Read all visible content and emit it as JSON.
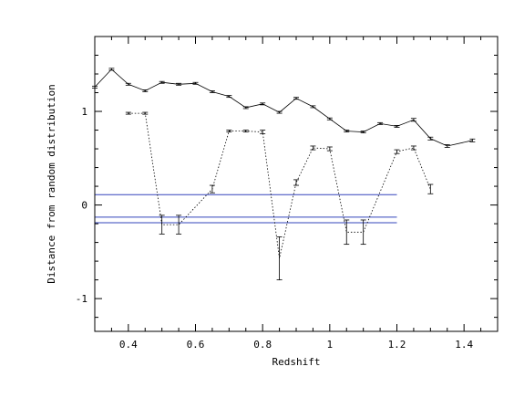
{
  "chart_data": {
    "type": "line",
    "title": "",
    "xlabel": "Redshift",
    "ylabel": "Distance from random distribution",
    "xlim": [
      0.3,
      1.5
    ],
    "ylim": [
      -1.35,
      1.8
    ],
    "x_ticks": [
      0.4,
      0.6,
      0.8,
      1,
      1.2,
      1.4
    ],
    "x_tick_labels": [
      "0.4",
      "0.6",
      "0.8",
      "1",
      "1.2",
      "1.4"
    ],
    "y_ticks": [
      -1,
      0,
      1
    ],
    "y_tick_labels": [
      "-1",
      "0",
      "1"
    ],
    "grid": false,
    "legend": "none",
    "colors": {
      "axes": "#000000",
      "series": "#000000",
      "reference_lines": "#3344bb"
    },
    "series": [
      {
        "style": "solid",
        "points": [
          {
            "x": 0.3,
            "y": 1.26,
            "err": 0.01
          },
          {
            "x": 0.35,
            "y": 1.45,
            "err": 0.01
          },
          {
            "x": 0.4,
            "y": 1.29,
            "err": 0.01
          },
          {
            "x": 0.45,
            "y": 1.22,
            "err": 0.01
          },
          {
            "x": 0.5,
            "y": 1.31,
            "err": 0.01
          },
          {
            "x": 0.55,
            "y": 1.29,
            "err": 0.01
          },
          {
            "x": 0.6,
            "y": 1.3,
            "err": 0.01
          },
          {
            "x": 0.65,
            "y": 1.21,
            "err": 0.01
          },
          {
            "x": 0.7,
            "y": 1.16,
            "err": 0.01
          },
          {
            "x": 0.75,
            "y": 1.04,
            "err": 0.01
          },
          {
            "x": 0.8,
            "y": 1.08,
            "err": 0.01
          },
          {
            "x": 0.85,
            "y": 0.99,
            "err": 0.01
          },
          {
            "x": 0.9,
            "y": 1.14,
            "err": 0.01
          },
          {
            "x": 0.95,
            "y": 1.05,
            "err": 0.01
          },
          {
            "x": 1.0,
            "y": 0.92,
            "err": 0.01
          },
          {
            "x": 1.05,
            "y": 0.79,
            "err": 0.01
          },
          {
            "x": 1.1,
            "y": 0.78,
            "err": 0.01
          },
          {
            "x": 1.15,
            "y": 0.87,
            "err": 0.01
          },
          {
            "x": 1.2,
            "y": 0.84,
            "err": 0.01
          },
          {
            "x": 1.25,
            "y": 0.91,
            "err": 0.015
          },
          {
            "x": 1.3,
            "y": 0.71,
            "err": 0.015
          },
          {
            "x": 1.35,
            "y": 0.63,
            "err": 0.015
          },
          {
            "x": 1.425,
            "y": 0.69,
            "err": 0.015
          }
        ]
      },
      {
        "style": "dotted",
        "points": [
          {
            "x": 0.4,
            "y": 0.98,
            "err": 0.01
          },
          {
            "x": 0.45,
            "y": 0.98,
            "err": 0.01
          },
          {
            "x": 0.5,
            "y": -0.21,
            "err": 0.1
          },
          {
            "x": 0.55,
            "y": -0.21,
            "err": 0.1
          },
          {
            "x": 0.65,
            "y": 0.17,
            "err": 0.04
          },
          {
            "x": 0.7,
            "y": 0.79,
            "err": 0.01
          },
          {
            "x": 0.75,
            "y": 0.79,
            "err": 0.01
          },
          {
            "x": 0.8,
            "y": 0.78,
            "err": 0.02
          },
          {
            "x": 0.85,
            "y": -0.57,
            "err": 0.23
          },
          {
            "x": 0.9,
            "y": 0.24,
            "err": 0.03
          },
          {
            "x": 0.95,
            "y": 0.61,
            "err": 0.02
          },
          {
            "x": 1.0,
            "y": 0.6,
            "err": 0.02
          },
          {
            "x": 1.05,
            "y": -0.29,
            "err": 0.13
          },
          {
            "x": 1.1,
            "y": -0.29,
            "err": 0.13
          },
          {
            "x": 1.2,
            "y": 0.57,
            "err": 0.02
          },
          {
            "x": 1.25,
            "y": 0.61,
            "err": 0.02
          },
          {
            "x": 1.3,
            "y": 0.17,
            "err": 0.05
          }
        ]
      }
    ],
    "reference_lines": [
      {
        "y": 0.11,
        "x_range": [
          0.3,
          1.2
        ]
      },
      {
        "y": -0.13,
        "x_range": [
          0.3,
          1.2
        ]
      },
      {
        "y": -0.19,
        "x_range": [
          0.3,
          1.2
        ]
      }
    ]
  }
}
